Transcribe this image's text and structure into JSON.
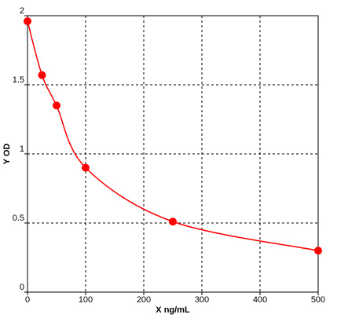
{
  "chart_data": {
    "type": "line",
    "x_label": "X ng/mL",
    "y_label": "Y OD",
    "x": [
      0,
      25,
      50,
      100,
      250,
      500
    ],
    "series": [
      {
        "color": "#ff0000",
        "values": [
          1.96,
          1.57,
          1.35,
          0.9,
          0.51,
          0.3
        ]
      }
    ],
    "xlim": [
      0,
      500
    ],
    "xticks": [
      0,
      100,
      200,
      300,
      400,
      500
    ],
    "ylim": [
      0,
      2
    ],
    "yticks": [
      0,
      0.5,
      1,
      1.5,
      2
    ],
    "grid": true,
    "markers": true
  }
}
